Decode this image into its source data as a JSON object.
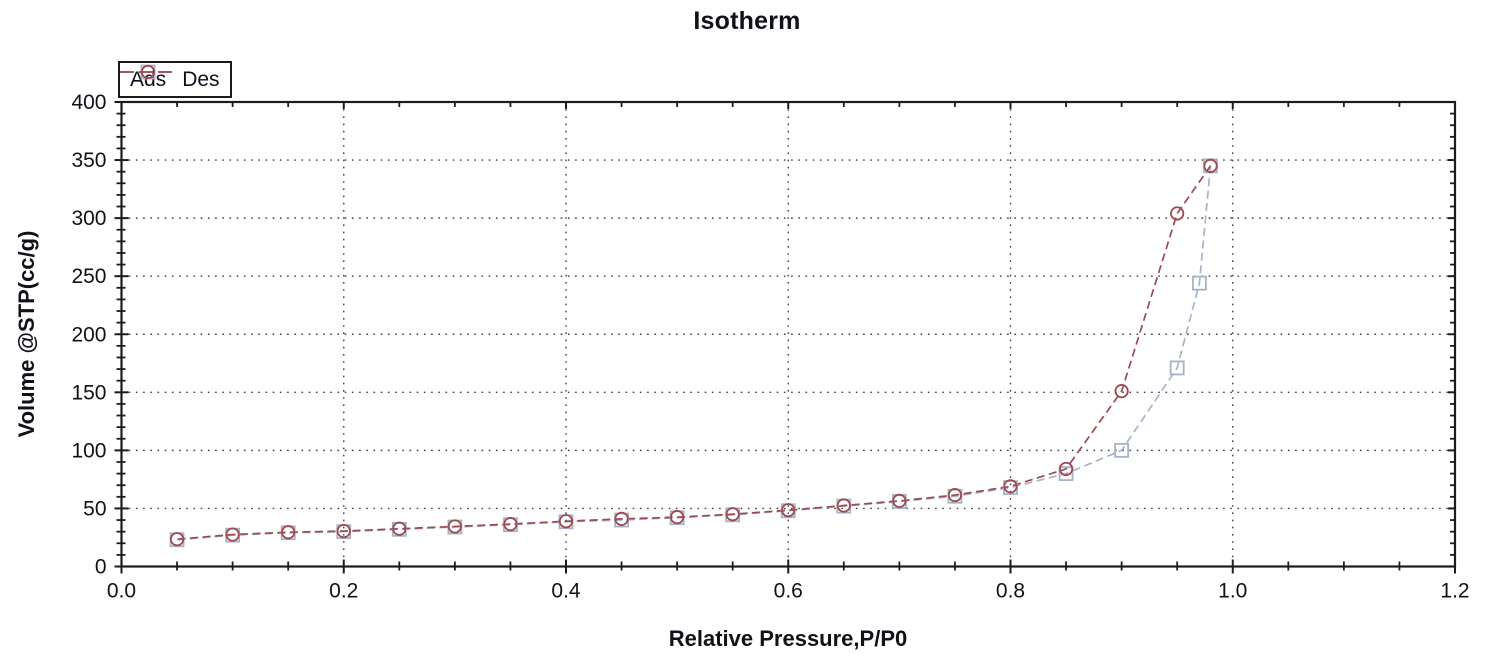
{
  "chart_data": {
    "type": "line",
    "title": "Isotherm",
    "xlabel": "Relative Pressure,P/P0",
    "ylabel": "Volume @STP(cc/g)",
    "xlim": [
      0.0,
      1.2
    ],
    "ylim": [
      0,
      400
    ],
    "xticks": [
      "0.0",
      "0.2",
      "0.4",
      "0.6",
      "0.8",
      "1.0",
      "1.2"
    ],
    "yticks": [
      "0",
      "50",
      "100",
      "150",
      "200",
      "250",
      "300",
      "350",
      "400"
    ],
    "x_minor_step": 0.05,
    "y_minor_step": 10,
    "grid": {
      "style": "dotted",
      "color": "#3f3f3f",
      "x_major": true,
      "y_major": true
    },
    "axis_color": "#1c1c1c",
    "text_color": "#111118",
    "legend_position": "top-left",
    "series": [
      {
        "name": "Ads",
        "marker": "square",
        "line_style": "dashed",
        "color": "#a6b3c7",
        "x": [
          0.05,
          0.1,
          0.15,
          0.2,
          0.25,
          0.3,
          0.35,
          0.4,
          0.45,
          0.5,
          0.55,
          0.6,
          0.65,
          0.7,
          0.75,
          0.8,
          0.85,
          0.9,
          0.95,
          0.97,
          0.98
        ],
        "y": [
          23,
          27,
          29,
          30,
          32,
          34,
          36,
          38.5,
          40,
          42,
          44.5,
          48,
          52,
          56,
          60.5,
          68,
          80,
          100,
          171,
          244,
          345
        ]
      },
      {
        "name": "Des",
        "marker": "circle",
        "line_style": "dashed",
        "color": "#9c4a50",
        "x": [
          0.98,
          0.95,
          0.9,
          0.85,
          0.8,
          0.75,
          0.7,
          0.65,
          0.6,
          0.55,
          0.5,
          0.45,
          0.4,
          0.35,
          0.3,
          0.25,
          0.2,
          0.15,
          0.1,
          0.05
        ],
        "y": [
          345,
          304,
          151,
          84,
          69,
          61.5,
          56.5,
          52.5,
          48.5,
          45,
          42.5,
          41,
          39,
          36.5,
          34.5,
          32.5,
          30.5,
          29.5,
          27.5,
          23.5
        ]
      }
    ]
  }
}
